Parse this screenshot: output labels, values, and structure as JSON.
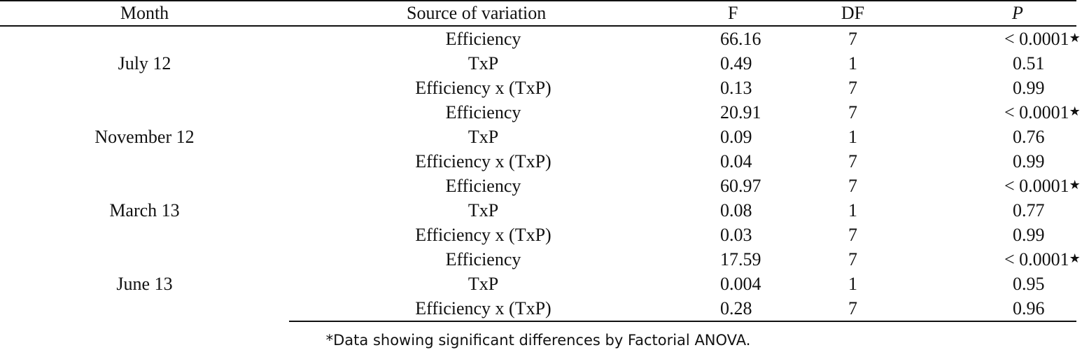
{
  "table": {
    "headers": {
      "month": "Month",
      "source": "Source of variation",
      "f": "F",
      "df": "DF",
      "p": "P"
    },
    "groups": [
      {
        "month": "July 12",
        "rows": [
          {
            "source": "Efficiency",
            "f": "66.16",
            "df": "7",
            "p": "< 0.0001",
            "significant": true
          },
          {
            "source": "TxP",
            "f": "0.49",
            "df": "1",
            "p": "0.51",
            "significant": false
          },
          {
            "source": "Efficiency x (TxP)",
            "f": "0.13",
            "df": "7",
            "p": "0.99",
            "significant": false
          }
        ]
      },
      {
        "month": "November 12",
        "rows": [
          {
            "source": "Efficiency",
            "f": "20.91",
            "df": "7",
            "p": "< 0.0001",
            "significant": true
          },
          {
            "source": "TxP",
            "f": "0.09",
            "df": "1",
            "p": "0.76",
            "significant": false
          },
          {
            "source": "Efficiency x (TxP)",
            "f": "0.04",
            "df": "7",
            "p": "0.99",
            "significant": false
          }
        ]
      },
      {
        "month": "March 13",
        "rows": [
          {
            "source": "Efficiency",
            "f": "60.97",
            "df": "7",
            "p": "< 0.0001",
            "significant": true
          },
          {
            "source": "TxP",
            "f": "0.08",
            "df": "1",
            "p": "0.77",
            "significant": false
          },
          {
            "source": "Efficiency x (TxP)",
            "f": "0.03",
            "df": "7",
            "p": "0.99",
            "significant": false
          }
        ]
      },
      {
        "month": "June 13",
        "rows": [
          {
            "source": "Efficiency",
            "f": "17.59",
            "df": "7",
            "p": "< 0.0001",
            "significant": true
          },
          {
            "source": "TxP",
            "f": "0.004",
            "df": "1",
            "p": "0.95",
            "significant": false
          },
          {
            "source": "Efficiency x (TxP)",
            "f": "0.28",
            "df": "7",
            "p": "0.96",
            "significant": false
          }
        ]
      }
    ],
    "significance_mark": "*"
  },
  "footnote": "*Data showing significant differences by Factorial ANOVA."
}
